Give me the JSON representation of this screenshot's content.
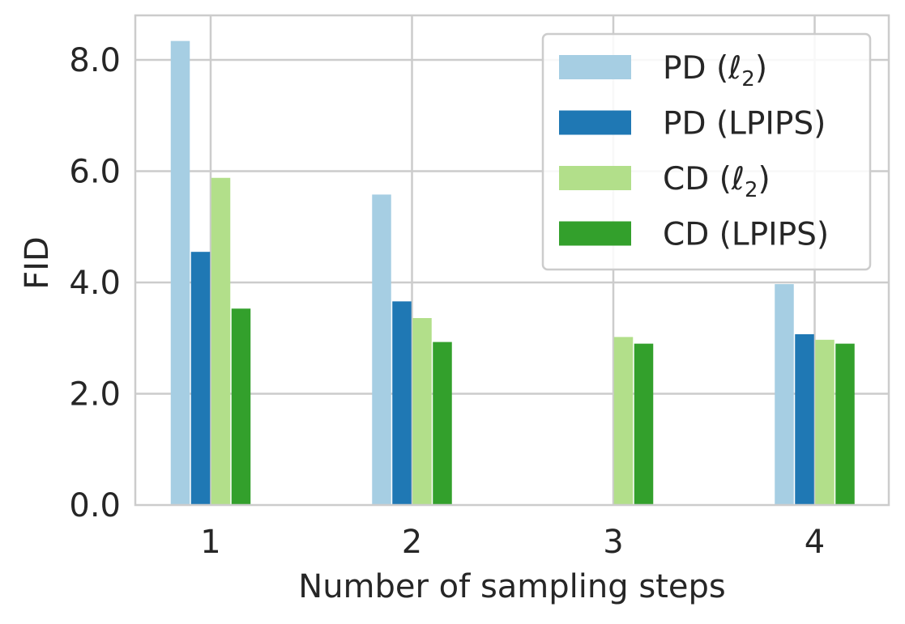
{
  "chart_data": {
    "type": "bar",
    "title": "",
    "xlabel": "Number of sampling steps",
    "ylabel": "FID",
    "categories": [
      "1",
      "2",
      "3",
      "4"
    ],
    "ylim": [
      0,
      8.8
    ],
    "yticks": [
      0,
      2,
      4,
      6,
      8
    ],
    "ytick_labels": [
      "0.0",
      "2.0",
      "4.0",
      "6.0",
      "8.0"
    ],
    "grid": true,
    "legend_position": "top-right",
    "series": [
      {
        "name": "PD (ℓ2)",
        "name_main": "PD (ℓ",
        "name_sub": "2",
        "name_tail": ")",
        "color": "#a6cee3",
        "values": [
          8.34,
          5.58,
          null,
          3.97
        ]
      },
      {
        "name": "PD (LPIPS)",
        "name_main": "PD (LPIPS)",
        "name_sub": "",
        "name_tail": "",
        "color": "#1f78b4",
        "values": [
          4.55,
          3.66,
          null,
          3.07
        ]
      },
      {
        "name": "CD (ℓ2)",
        "name_main": "CD (ℓ",
        "name_sub": "2",
        "name_tail": ")",
        "color": "#b2df8a",
        "values": [
          5.88,
          3.36,
          3.02,
          2.97
        ]
      },
      {
        "name": "CD (LPIPS)",
        "name_main": "CD (LPIPS)",
        "name_sub": "",
        "name_tail": "",
        "color": "#33a02c",
        "values": [
          3.53,
          2.93,
          2.9,
          2.9
        ]
      }
    ]
  }
}
